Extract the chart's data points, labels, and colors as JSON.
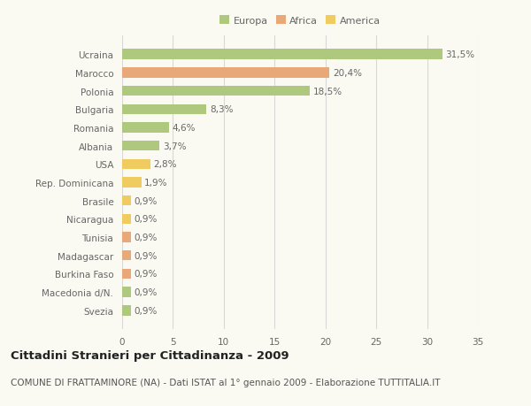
{
  "categories": [
    "Ucraina",
    "Marocco",
    "Polonia",
    "Bulgaria",
    "Romania",
    "Albania",
    "USA",
    "Rep. Dominicana",
    "Brasile",
    "Nicaragua",
    "Tunisia",
    "Madagascar",
    "Burkina Faso",
    "Macedonia d/N.",
    "Svezia"
  ],
  "values": [
    31.5,
    20.4,
    18.5,
    8.3,
    4.6,
    3.7,
    2.8,
    1.9,
    0.9,
    0.9,
    0.9,
    0.9,
    0.9,
    0.9,
    0.9
  ],
  "labels": [
    "31,5%",
    "20,4%",
    "18,5%",
    "8,3%",
    "4,6%",
    "3,7%",
    "2,8%",
    "1,9%",
    "0,9%",
    "0,9%",
    "0,9%",
    "0,9%",
    "0,9%",
    "0,9%",
    "0,9%"
  ],
  "continent": [
    "Europa",
    "Africa",
    "Europa",
    "Europa",
    "Europa",
    "Europa",
    "America",
    "America",
    "America",
    "America",
    "Africa",
    "Africa",
    "Africa",
    "Europa",
    "Europa"
  ],
  "colors": {
    "Europa": "#aec87e",
    "Africa": "#e8a878",
    "America": "#f0cc60"
  },
  "xlim": [
    0,
    35
  ],
  "xticks": [
    0,
    5,
    10,
    15,
    20,
    25,
    30,
    35
  ],
  "title": "Cittadini Stranieri per Cittadinanza - 2009",
  "subtitle": "COMUNE DI FRATTAMINORE (NA) - Dati ISTAT al 1° gennaio 2009 - Elaborazione TUTTITALIA.IT",
  "background_color": "#fafaf2",
  "grid_color": "#d8d8d8",
  "bar_height": 0.55,
  "label_fontsize": 7.5,
  "title_fontsize": 9.5,
  "subtitle_fontsize": 7.5,
  "tick_fontsize": 7.5
}
